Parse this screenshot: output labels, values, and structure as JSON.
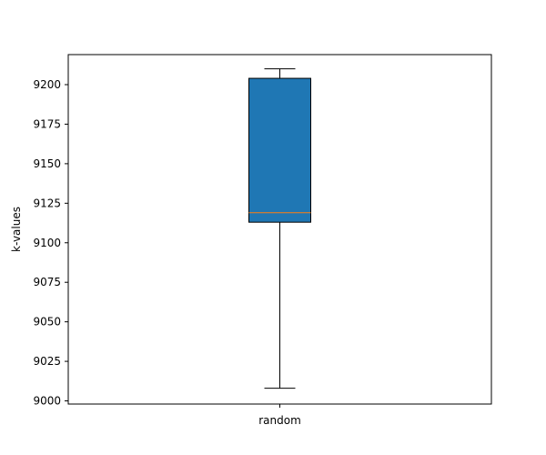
{
  "chart_data": {
    "type": "boxplot",
    "title": "",
    "xlabel": "",
    "ylabel": "k-values",
    "ylim": [
      8998,
      9219
    ],
    "yticks": [
      9000,
      9025,
      9050,
      9075,
      9100,
      9125,
      9150,
      9175,
      9200
    ],
    "categories": [
      "random"
    ],
    "boxes": [
      {
        "category": "random",
        "whisker_low": 9008,
        "q1": 9113,
        "median": 9119,
        "q3": 9204,
        "whisker_high": 9210
      }
    ],
    "grid": false,
    "colors": {
      "box_fill": "#1f77b4",
      "median": "#ff7f0e",
      "edge": "#000000"
    }
  }
}
